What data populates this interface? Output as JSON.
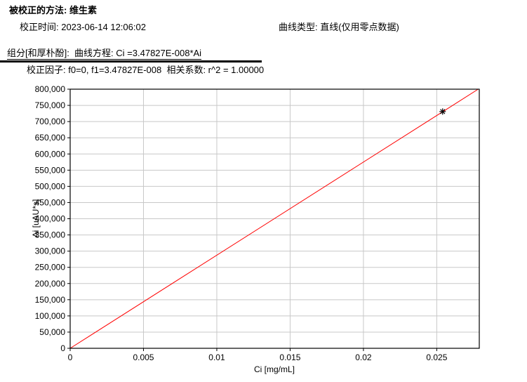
{
  "header": {
    "title": "被校正的方法: 维生素",
    "calibration_time": "校正时间: 2023-06-14 12:06:02",
    "curve_type": "曲线类型: 直线(仅用零点数据)",
    "component_line": "组分[和厚朴酚]:  曲线方程: Ci =3.47827E-008*Ai",
    "factor_line": "校正因子: f0=0, f1=3.47827E-008  相关系数: r^2 = 1.00000"
  },
  "colors": {
    "fit_line": "#ff0000",
    "grid": "#c8c8c8",
    "axis": "#000000",
    "text": "#000000",
    "background": "#ffffff"
  },
  "chart_data": {
    "type": "scatter",
    "title": "",
    "xlabel": "Ci [mg/mL]",
    "ylabel": "Ai [uAU*s]",
    "xlim": [
      0,
      0.0279
    ],
    "ylim": [
      0,
      800000
    ],
    "grid": true,
    "x_ticks": [
      0,
      0.005,
      0.01,
      0.015,
      0.02,
      0.025
    ],
    "x_tick_labels": [
      "0",
      "0.005",
      "0.01",
      "0.015",
      "0.02",
      "0.025"
    ],
    "y_ticks": [
      0,
      50000,
      100000,
      150000,
      200000,
      250000,
      300000,
      350000,
      400000,
      450000,
      500000,
      550000,
      600000,
      650000,
      700000,
      750000,
      800000
    ],
    "y_tick_labels": [
      "0",
      "50,000",
      "100,000",
      "150,000",
      "200,000",
      "250,000",
      "300,000",
      "350,000",
      "400,000",
      "450,000",
      "500,000",
      "550,000",
      "600,000",
      "650,000",
      "700,000",
      "750,000",
      "800,000"
    ],
    "fit": {
      "equation": "Ci =3.47827E-008*Ai",
      "f0": 0,
      "f1": 3.47827e-08,
      "r_squared": 1.0,
      "color": "#ff0000",
      "through_zero": true
    },
    "points": [
      {
        "ci": 0.0254,
        "ai": 731000,
        "marker": "asterisk",
        "color": "#000000"
      }
    ]
  }
}
